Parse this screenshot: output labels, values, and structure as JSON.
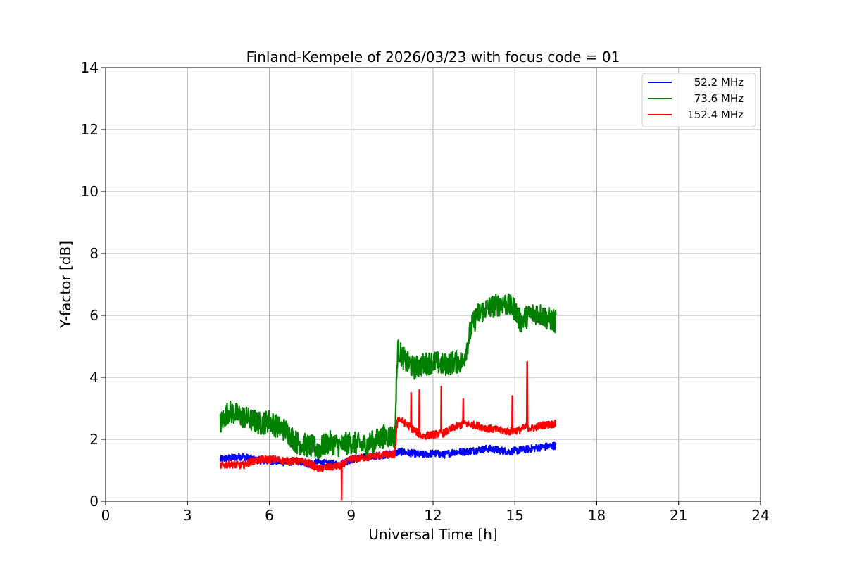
{
  "chart_data": {
    "type": "line",
    "title": "Finland-Kempele of 2026/03/23 with focus code = 01",
    "xlabel": "Universal Time [h]",
    "ylabel": "Y-factor [dB]",
    "xlim": [
      0,
      24
    ],
    "ylim": [
      0,
      14
    ],
    "xticks": [
      0,
      3,
      6,
      9,
      12,
      15,
      18,
      21,
      24
    ],
    "yticks": [
      0,
      2,
      4,
      6,
      8,
      10,
      12,
      14
    ],
    "xtick_labels": [
      "0",
      "3",
      "6",
      "9",
      "12",
      "15",
      "18",
      "21",
      "24"
    ],
    "ytick_labels": [
      "0",
      "2",
      "4",
      "6",
      "8",
      "10",
      "12",
      "14"
    ],
    "grid": true,
    "legend_position": "top-right",
    "series": [
      {
        "name": "52.2 MHz",
        "color": "#0000ff",
        "x": [
          4.2,
          4.6,
          5.0,
          5.4,
          5.8,
          6.2,
          6.6,
          7.0,
          7.4,
          7.8,
          8.2,
          8.6,
          9.0,
          9.4,
          9.8,
          10.2,
          10.6,
          10.8,
          11.2,
          11.6,
          12.0,
          12.4,
          12.8,
          13.2,
          13.6,
          14.0,
          14.4,
          14.8,
          15.2,
          15.6,
          16.0,
          16.5
        ],
        "y": [
          1.35,
          1.4,
          1.45,
          1.35,
          1.3,
          1.3,
          1.25,
          1.3,
          1.2,
          1.25,
          1.2,
          1.2,
          1.35,
          1.4,
          1.45,
          1.5,
          1.55,
          1.6,
          1.55,
          1.5,
          1.55,
          1.5,
          1.6,
          1.6,
          1.65,
          1.7,
          1.65,
          1.6,
          1.65,
          1.7,
          1.75,
          1.8
        ]
      },
      {
        "name": "73.6 MHz",
        "color": "#008000",
        "x": [
          4.2,
          4.5,
          4.8,
          5.1,
          5.4,
          5.7,
          6.0,
          6.3,
          6.6,
          7.0,
          7.4,
          7.8,
          8.2,
          8.6,
          9.0,
          9.4,
          9.8,
          10.2,
          10.6,
          10.7,
          11.0,
          11.3,
          11.6,
          12.0,
          12.4,
          12.8,
          13.1,
          13.4,
          13.6,
          13.9,
          14.2,
          14.6,
          15.0,
          15.2,
          15.5,
          15.8,
          16.2,
          16.5
        ],
        "y": [
          2.5,
          2.9,
          2.8,
          2.7,
          2.6,
          2.5,
          2.6,
          2.4,
          2.3,
          1.9,
          1.8,
          1.7,
          1.9,
          1.8,
          1.9,
          1.8,
          1.9,
          2.1,
          2.1,
          4.9,
          4.5,
          4.3,
          4.4,
          4.5,
          4.4,
          4.5,
          4.5,
          5.6,
          6.0,
          6.2,
          6.3,
          6.4,
          6.2,
          5.8,
          6.0,
          6.1,
          5.9,
          5.8
        ]
      },
      {
        "name": "152.4 MHz",
        "color": "#ff0000",
        "x": [
          4.2,
          4.6,
          5.0,
          5.4,
          5.8,
          6.2,
          6.6,
          7.0,
          7.4,
          7.8,
          8.2,
          8.6,
          9.0,
          9.4,
          9.8,
          10.2,
          10.6,
          10.7,
          11.0,
          11.3,
          11.6,
          12.0,
          12.4,
          12.8,
          13.2,
          13.6,
          14.0,
          14.4,
          14.8,
          15.2,
          15.4,
          15.6,
          16.0,
          16.5
        ],
        "y": [
          1.15,
          1.2,
          1.15,
          1.3,
          1.35,
          1.35,
          1.3,
          1.3,
          1.25,
          1.05,
          1.1,
          1.15,
          1.35,
          1.4,
          1.45,
          1.5,
          1.5,
          2.7,
          2.5,
          2.3,
          2.1,
          2.15,
          2.2,
          2.4,
          2.5,
          2.45,
          2.35,
          2.3,
          2.25,
          2.3,
          2.4,
          2.35,
          2.45,
          2.5
        ]
      }
    ],
    "annotations": [
      {
        "series": "152.4 MHz",
        "x": 8.65,
        "y": 0.05,
        "kind": "spike-down"
      },
      {
        "series": "152.4 MHz",
        "x": 11.2,
        "y": 3.5,
        "kind": "spike"
      },
      {
        "series": "152.4 MHz",
        "x": 11.5,
        "y": 3.6,
        "kind": "spike"
      },
      {
        "series": "152.4 MHz",
        "x": 12.3,
        "y": 3.7,
        "kind": "spike"
      },
      {
        "series": "152.4 MHz",
        "x": 13.1,
        "y": 3.3,
        "kind": "spike"
      },
      {
        "series": "152.4 MHz",
        "x": 14.9,
        "y": 3.4,
        "kind": "spike"
      },
      {
        "series": "152.4 MHz",
        "x": 15.45,
        "y": 4.5,
        "kind": "spike"
      }
    ]
  }
}
